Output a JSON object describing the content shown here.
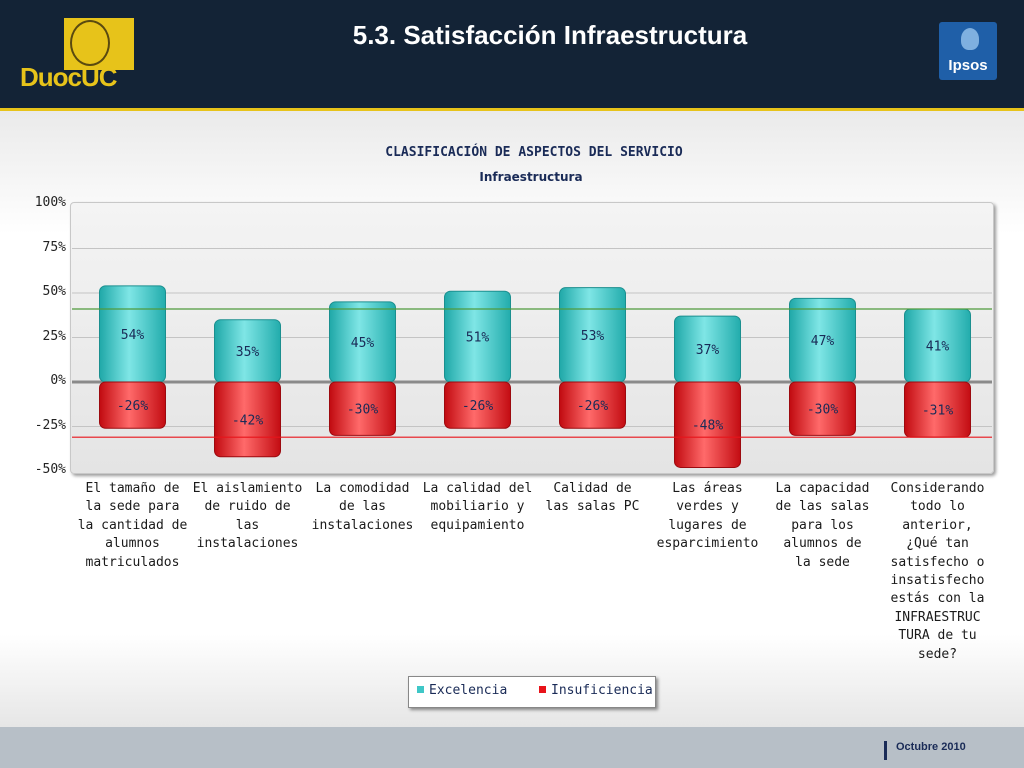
{
  "header": {
    "title": "5.3. Satisfacción Infraestructura",
    "logo_left_text": "DuocUC",
    "logo_right_text": "Ipsos"
  },
  "colors": {
    "header_bg": "#132336",
    "accent_yellow": "#e7c31a",
    "excelencia": "#3fc7c7",
    "insuficiencia": "#e8131a",
    "ref_line_green": "#4f9a3c",
    "ref_line_red": "#e8131a"
  },
  "chart_data": {
    "type": "bar",
    "title": "CLASIFICACIÓN DE ASPECTOS DEL SERVICIO",
    "subtitle": "Infraestructura",
    "ylim": [
      -50,
      100
    ],
    "yticks": [
      "100%",
      "75%",
      "50%",
      "25%",
      "0%",
      "-25%",
      "-50%"
    ],
    "ytick_values": [
      100,
      75,
      50,
      25,
      0,
      -25,
      -50
    ],
    "grid": true,
    "legend_position": "bottom",
    "categories": [
      "El tamaño de la sede para la cantidad de alumnos matriculados",
      "El aislamiento de ruido de las instalaciones",
      "La comodidad de las instalaciones",
      "La calidad del mobiliario y equipamiento",
      "Calidad de las salas PC",
      "Las áreas verdes y lugares de esparcimiento",
      "La capacidad de las salas para los alumnos de la sede",
      "Considerando todo lo anterior, ¿Qué tan satisfecho o insatisfecho estás con la INFRAESTRUCTURA de tu sede?"
    ],
    "category_lines": [
      [
        "El tamaño de",
        "la sede para",
        "la cantidad de",
        "alumnos",
        "matriculados"
      ],
      [
        "El aislamiento",
        "de ruido de",
        "las",
        "instalaciones"
      ],
      [
        "La comodidad",
        "de las",
        "instalaciones"
      ],
      [
        "La calidad del",
        "mobiliario y",
        "equipamiento"
      ],
      [
        "Calidad de",
        "las salas PC"
      ],
      [
        "Las áreas",
        "verdes y",
        "lugares de",
        "esparcimiento"
      ],
      [
        "La capacidad",
        "de las salas",
        "para los",
        "alumnos de",
        "la sede"
      ],
      [
        "Considerando",
        "todo lo",
        "anterior,",
        "¿Qué tan",
        "satisfecho o",
        "insatisfecho",
        "estás con la",
        "INFRAESTRUC",
        "TURA de tu",
        "sede?"
      ]
    ],
    "series": [
      {
        "name": "Excelencia",
        "values": [
          54,
          35,
          45,
          51,
          53,
          37,
          47,
          41
        ],
        "labels": [
          "54%",
          "35%",
          "45%",
          "51%",
          "53%",
          "37%",
          "47%",
          "41%"
        ]
      },
      {
        "name": "Insuficiencia",
        "values": [
          -26,
          -42,
          -30,
          -26,
          -26,
          -48,
          -30,
          -31
        ],
        "labels": [
          "-26%",
          "-42%",
          "-30%",
          "-26%",
          "-26%",
          "-48%",
          "-30%",
          "-31%"
        ]
      }
    ],
    "reference_lines": [
      41,
      -31
    ]
  },
  "legend": {
    "excelencia": "Excelencia",
    "insuficiencia": "Insuficiencia"
  },
  "footer": {
    "date": "Octubre 2010"
  }
}
